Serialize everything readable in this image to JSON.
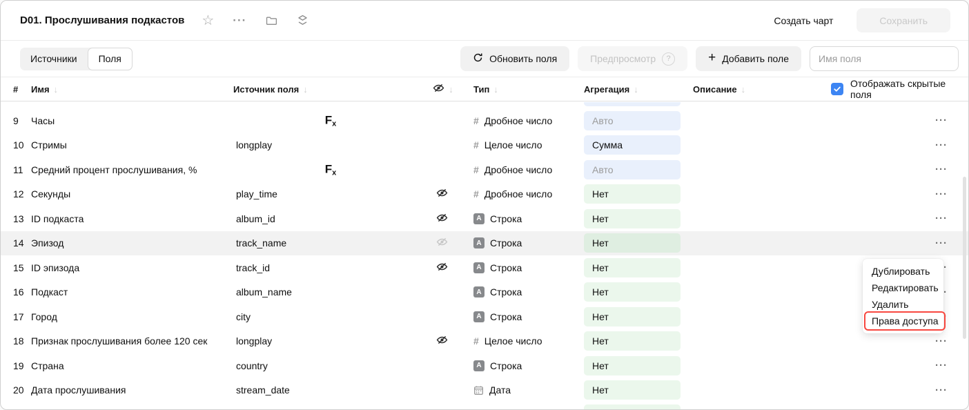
{
  "titlebar": {
    "title": "D01. Прослушивания подкастов",
    "create_chart_label": "Создать чарт",
    "save_label": "Сохранить"
  },
  "toolbar": {
    "tabs": [
      {
        "label": "Источники",
        "active": false
      },
      {
        "label": "Поля",
        "active": true
      }
    ],
    "refresh_label": "Обновить поля",
    "preview_label": "Предпросмотр",
    "add_field_label": "Добавить поле",
    "field_name_placeholder": "Имя поля"
  },
  "table": {
    "headers": {
      "num": "#",
      "name": "Имя",
      "source": "Источник поля",
      "type": "Тип",
      "aggregation": "Агрегация",
      "description": "Описание"
    },
    "show_hidden": {
      "label": "Отображать скрытые поля",
      "checked": true
    },
    "rows": [
      {
        "num": "9",
        "name": "Часы",
        "source": "",
        "formula": true,
        "eye": "none",
        "type_icon": "number",
        "type_label": "Дробное число",
        "agg": "Авто",
        "agg_variant": "auto",
        "highlighted": false
      },
      {
        "num": "10",
        "name": "Стримы",
        "source": "longplay",
        "formula": false,
        "eye": "none",
        "type_icon": "number",
        "type_label": "Целое число",
        "agg": "Сумма",
        "agg_variant": "sum",
        "highlighted": false
      },
      {
        "num": "11",
        "name": "Средний процент прослушивания, %",
        "source": "",
        "formula": true,
        "eye": "none",
        "type_icon": "number",
        "type_label": "Дробное число",
        "agg": "Авто",
        "agg_variant": "auto",
        "highlighted": false
      },
      {
        "num": "12",
        "name": "Секунды",
        "source": "play_time",
        "formula": false,
        "eye": "dark",
        "type_icon": "number",
        "type_label": "Дробное число",
        "agg": "Нет",
        "agg_variant": "none",
        "highlighted": false
      },
      {
        "num": "13",
        "name": "ID подкаста",
        "source": "album_id",
        "formula": false,
        "eye": "dark",
        "type_icon": "string",
        "type_label": "Строка",
        "agg": "Нет",
        "agg_variant": "none",
        "highlighted": false
      },
      {
        "num": "14",
        "name": "Эпизод",
        "source": "track_name",
        "formula": false,
        "eye": "muted",
        "type_icon": "string",
        "type_label": "Строка",
        "agg": "Нет",
        "agg_variant": "none",
        "highlighted": true
      },
      {
        "num": "15",
        "name": "ID эпизода",
        "source": "track_id",
        "formula": false,
        "eye": "dark",
        "type_icon": "string",
        "type_label": "Строка",
        "agg": "Нет",
        "agg_variant": "none",
        "highlighted": false
      },
      {
        "num": "16",
        "name": "Подкаст",
        "source": "album_name",
        "formula": false,
        "eye": "none",
        "type_icon": "string",
        "type_label": "Строка",
        "agg": "Нет",
        "agg_variant": "none",
        "highlighted": false
      },
      {
        "num": "17",
        "name": "Город",
        "source": "city",
        "formula": false,
        "eye": "none",
        "type_icon": "string",
        "type_label": "Строка",
        "agg": "Нет",
        "agg_variant": "none",
        "highlighted": false
      },
      {
        "num": "18",
        "name": "Признак прослушивания более 120 сек",
        "source": "longplay",
        "formula": false,
        "eye": "dark",
        "type_icon": "number",
        "type_label": "Целое число",
        "agg": "Нет",
        "agg_variant": "none",
        "highlighted": false
      },
      {
        "num": "19",
        "name": "Страна",
        "source": "country",
        "formula": false,
        "eye": "none",
        "type_icon": "string",
        "type_label": "Строка",
        "agg": "Нет",
        "agg_variant": "none",
        "highlighted": false
      },
      {
        "num": "20",
        "name": "Дата прослушивания",
        "source": "stream_date",
        "formula": false,
        "eye": "none",
        "type_icon": "date",
        "type_label": "Дата",
        "agg": "Нет",
        "agg_variant": "none",
        "highlighted": false
      }
    ]
  },
  "context_menu": {
    "items": [
      {
        "label": "Дублировать",
        "highlighted": false
      },
      {
        "label": "Редактировать",
        "highlighted": false
      },
      {
        "label": "Удалить",
        "highlighted": false
      },
      {
        "label": "Права доступа",
        "highlighted": true
      }
    ]
  },
  "icons": {
    "star": "☆",
    "more": "···",
    "plus": "+",
    "question": "?",
    "sort": "↓",
    "formula_main": "F",
    "formula_sub": "x",
    "type_number": "#",
    "type_string": "A",
    "row_actions": "···"
  },
  "colors": {
    "accent_blue": "#3d85f3",
    "badge_blue": "#e9f0fc",
    "badge_green": "#ebf7ec",
    "highlight_red": "#f8473f"
  }
}
